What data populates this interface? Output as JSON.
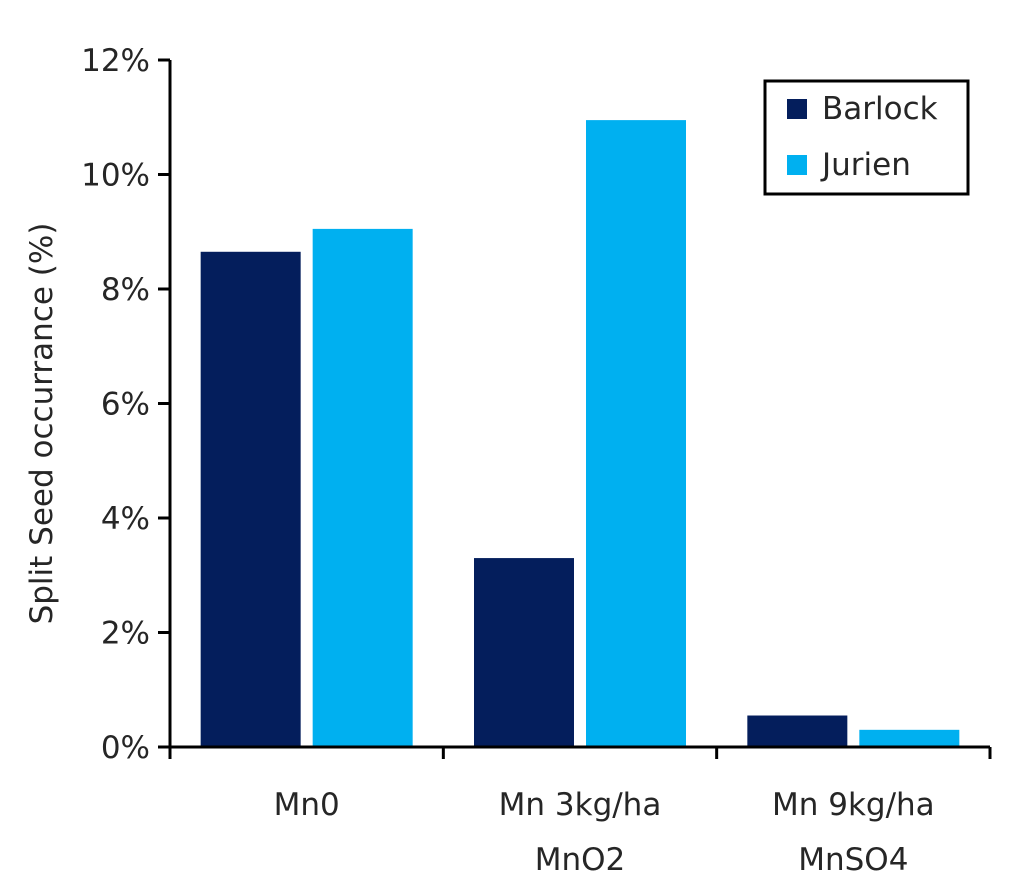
{
  "chart_data": {
    "type": "bar",
    "categories": [
      [
        "Mn0"
      ],
      [
        "Mn 3kg/ha",
        "MnO2"
      ],
      [
        "Mn 9kg/ha",
        "MnSO4"
      ]
    ],
    "series": [
      {
        "name": "Barlock",
        "values": [
          8.65,
          3.3,
          0.55
        ],
        "color": "#041e5c"
      },
      {
        "name": "Jurien",
        "values": [
          9.05,
          10.95,
          0.3
        ],
        "color": "#00b0f0"
      }
    ],
    "ylabel": "Split Seed occurrance (%)",
    "ylim": [
      0,
      12
    ],
    "yticks": [
      0,
      2,
      4,
      6,
      8,
      10,
      12
    ],
    "ytick_labels": [
      "0%",
      "2%",
      "4%",
      "6%",
      "8%",
      "10%",
      "12%"
    ],
    "grid": false,
    "legend_position": "top-right"
  }
}
